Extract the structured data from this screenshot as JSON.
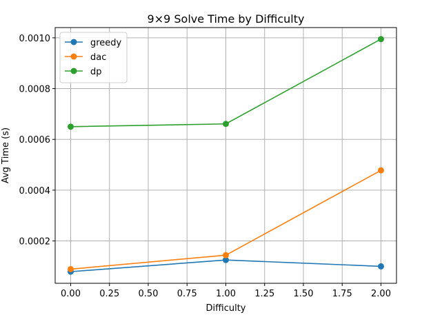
{
  "chart_data": {
    "type": "line",
    "title": "9×9 Solve Time by Difficulty",
    "xlabel": "Difficulty",
    "ylabel": "Avg Time (s)",
    "x": [
      0.0,
      1.0,
      2.0
    ],
    "xlim": [
      -0.1,
      2.1
    ],
    "ylim": [
      3.32e-05,
      0.0010404
    ],
    "xticks": [
      0.0,
      0.25,
      0.5,
      0.75,
      1.0,
      1.25,
      1.5,
      1.75,
      2.0
    ],
    "xtick_labels": [
      "0.00",
      "0.25",
      "0.50",
      "0.75",
      "1.00",
      "1.25",
      "1.50",
      "1.75",
      "2.00"
    ],
    "yticks": [
      0.0002,
      0.0004,
      0.0006,
      0.0008,
      0.001
    ],
    "ytick_labels": [
      "0.0002",
      "0.0004",
      "0.0006",
      "0.0008",
      "0.0010"
    ],
    "grid": true,
    "legend_position": "upper-left",
    "series": [
      {
        "name": "greedy",
        "color": "#1f77b4",
        "values": [
          7.9e-05,
          0.000125,
          0.0001
        ]
      },
      {
        "name": "dac",
        "color": "#ff7f0e",
        "values": [
          8.9e-05,
          0.000144,
          0.000478
        ]
      },
      {
        "name": "dp",
        "color": "#2ca02c",
        "values": [
          0.00065,
          0.000661,
          0.000995
        ]
      }
    ]
  }
}
